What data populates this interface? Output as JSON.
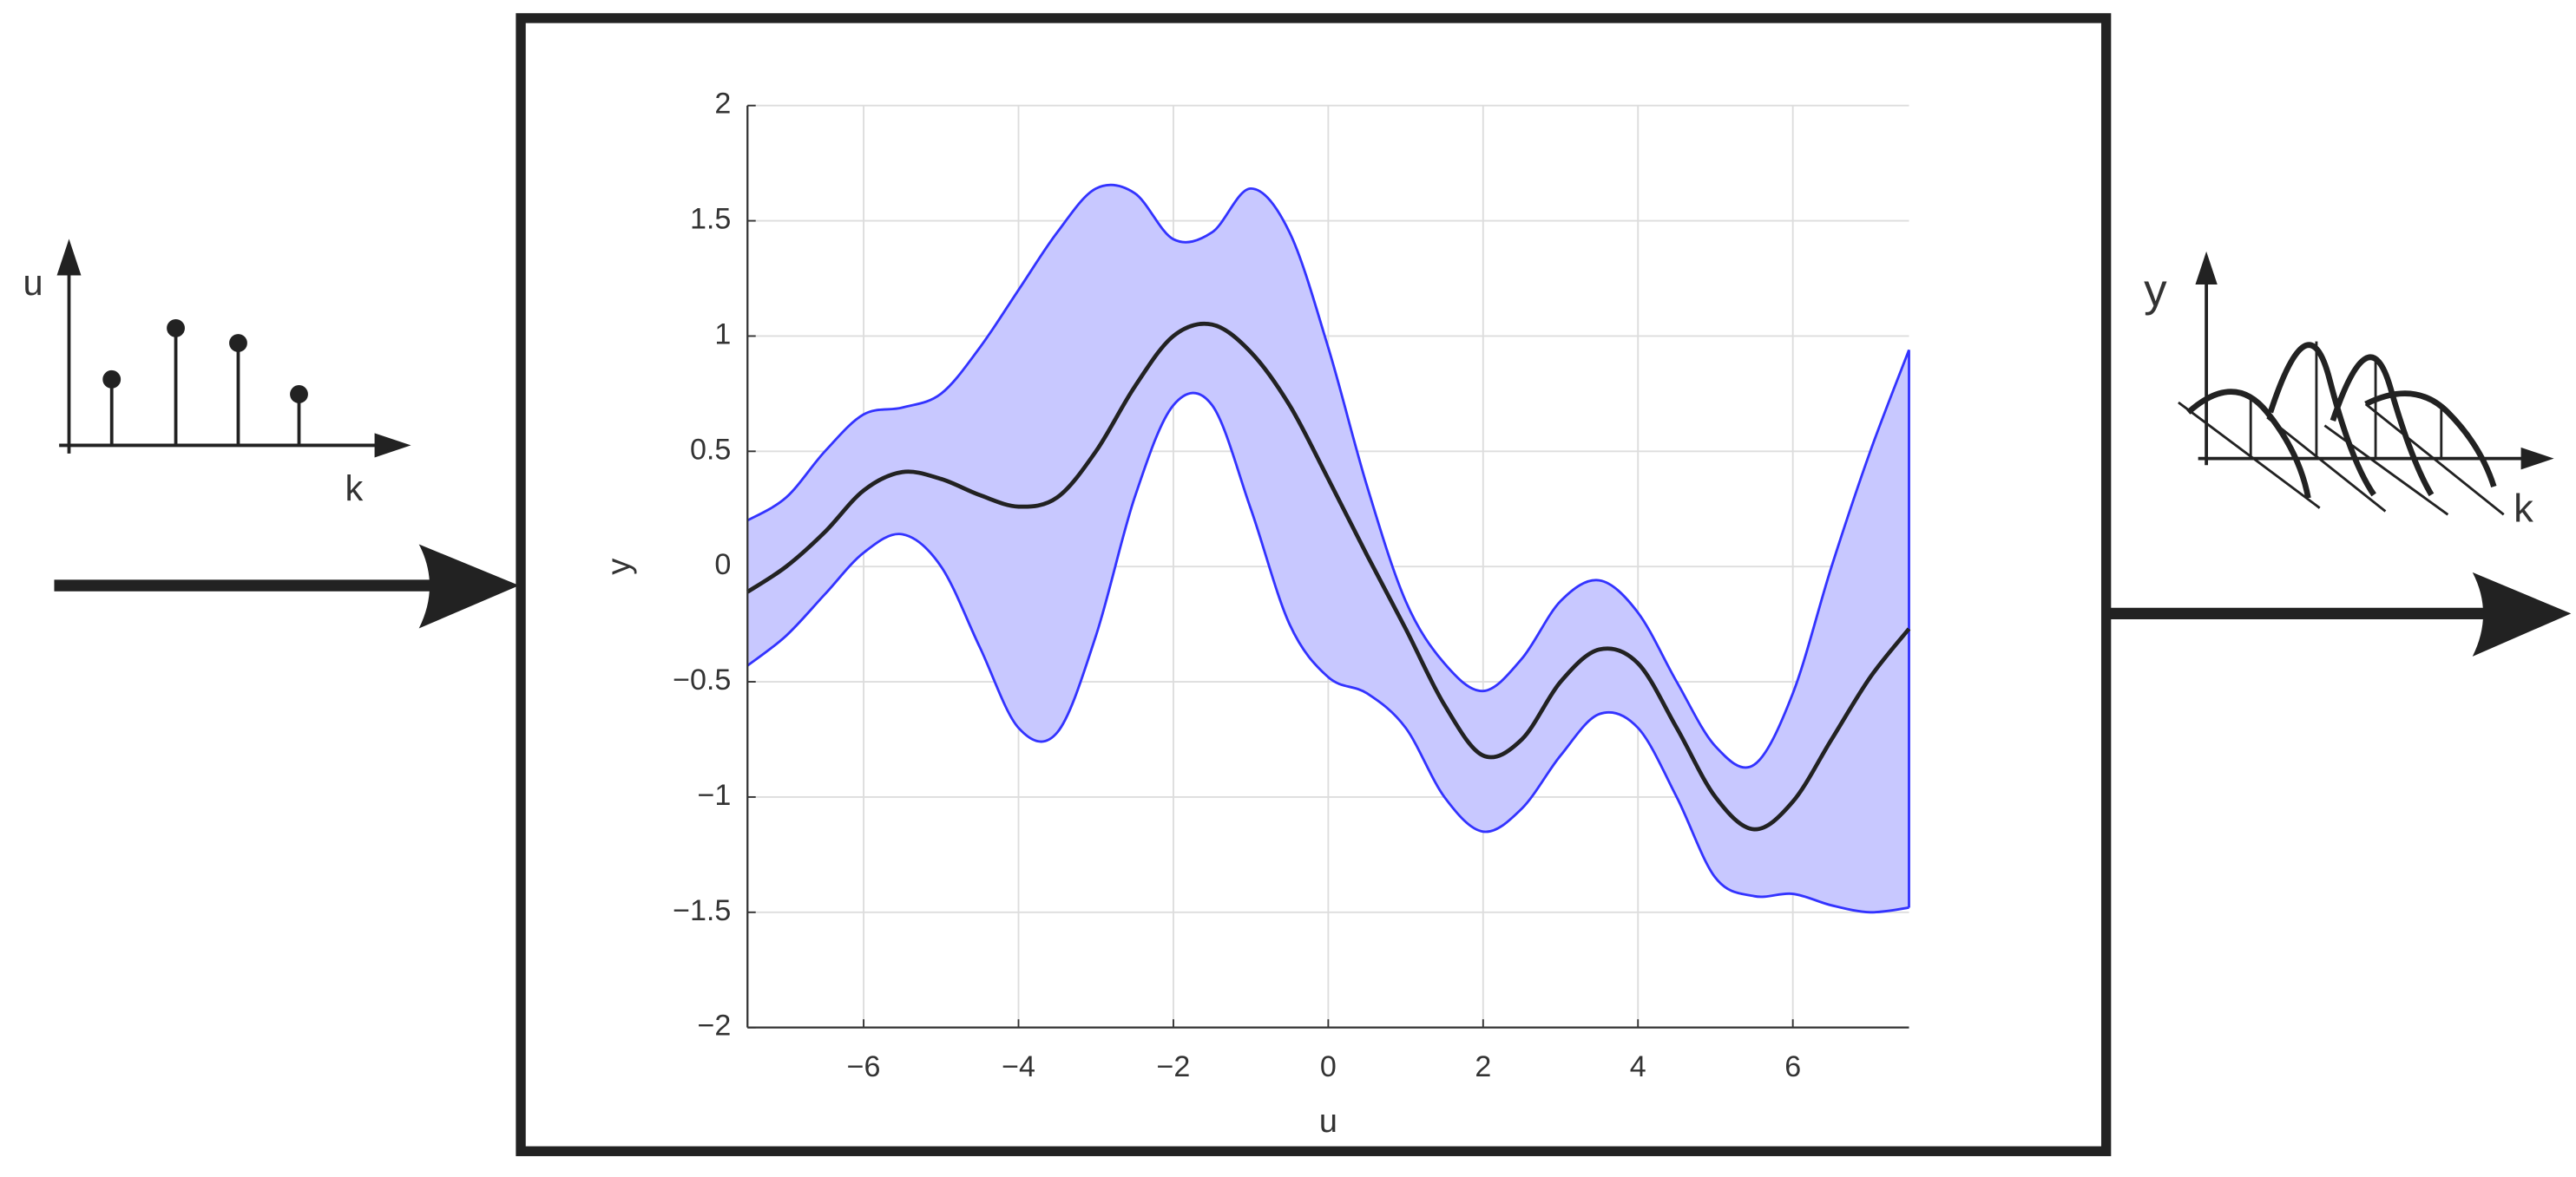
{
  "chart_data": {
    "type": "band-line",
    "xlabel": "u",
    "ylabel": "y",
    "x": [
      -7.5,
      -7,
      -6.5,
      -6,
      -5.5,
      -5,
      -4.5,
      -4,
      -3.5,
      -3,
      -2.5,
      -2,
      -1.5,
      -1,
      -0.5,
      0,
      0.5,
      1,
      1.5,
      2,
      2.5,
      3,
      3.5,
      4,
      4.5,
      5,
      5.5,
      6,
      6.5,
      7,
      7.5
    ],
    "series": [
      {
        "color": "#222222",
        "values": [
          -0.11,
          0.0,
          0.15,
          0.33,
          0.41,
          0.38,
          0.31,
          0.26,
          0.3,
          0.5,
          0.78,
          1.0,
          1.05,
          0.93,
          0.7,
          0.38,
          0.05,
          -0.27,
          -0.6,
          -0.82,
          -0.75,
          -0.5,
          -0.36,
          -0.42,
          -0.7,
          -1.0,
          -1.14,
          -1.02,
          -0.75,
          -0.48,
          -0.27
        ]
      },
      {
        "color": "#3333ff",
        "fill": "#c8c8ff",
        "values": [
          0.2,
          0.3,
          0.5,
          0.66,
          0.69,
          0.75,
          0.95,
          1.2,
          1.45,
          1.64,
          1.62,
          1.42,
          1.45,
          1.64,
          1.45,
          0.95,
          0.35,
          -0.15,
          -0.42,
          -0.54,
          -0.4,
          -0.15,
          -0.06,
          -0.2,
          -0.5,
          -0.78,
          -0.86,
          -0.55,
          0.0,
          0.5,
          0.94
        ]
      },
      {
        "color": "#3333ff",
        "fill": "#c8c8ff",
        "values": [
          -0.43,
          -0.3,
          -0.12,
          0.06,
          0.14,
          0.0,
          -0.35,
          -0.7,
          -0.72,
          -0.3,
          0.3,
          0.7,
          0.7,
          0.25,
          -0.25,
          -0.48,
          -0.55,
          -0.7,
          -1.0,
          -1.15,
          -1.05,
          -0.82,
          -0.64,
          -0.7,
          -1.0,
          -1.35,
          -1.43,
          -1.42,
          -1.47,
          -1.5,
          -1.48
        ]
      }
    ],
    "xlim": [
      -7.5,
      7.5
    ],
    "xticks": [
      {
        "value": -6,
        "label": "−6"
      },
      {
        "value": -4,
        "label": "−4"
      },
      {
        "value": -2,
        "label": "−2"
      },
      0,
      2,
      4,
      6
    ],
    "ylim": [
      -2,
      2
    ],
    "yticks": [
      {
        "value": -2,
        "label": "−2"
      },
      {
        "value": -1.5,
        "label": "−1.5"
      },
      {
        "value": -1,
        "label": "−1"
      },
      {
        "value": -0.5,
        "label": "−0.5"
      },
      0,
      0.5,
      1,
      1.5,
      2
    ],
    "grid": true
  },
  "input_icon": {
    "y_label": "u",
    "x_label": "k"
  },
  "output_icon": {
    "y_label": "y",
    "x_label": "k"
  }
}
